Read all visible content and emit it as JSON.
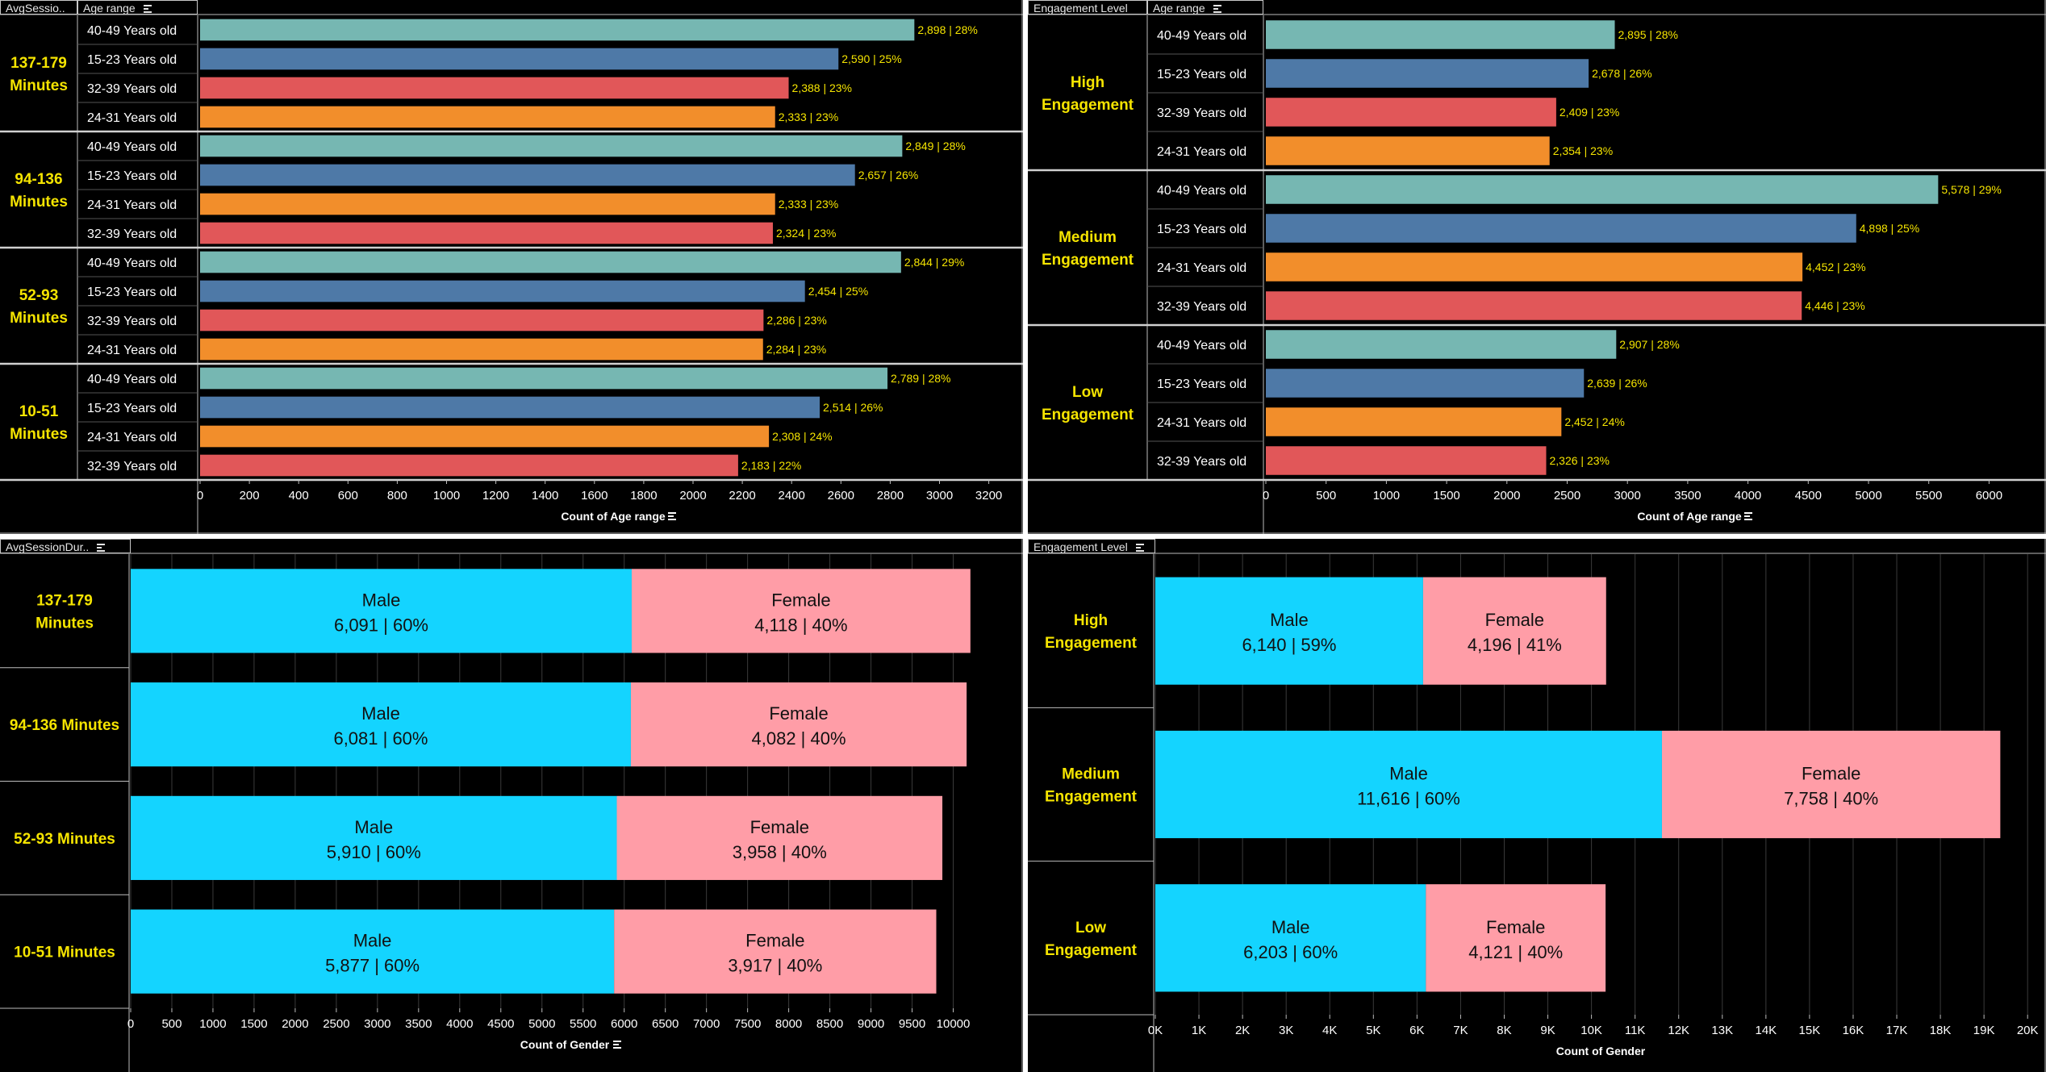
{
  "colors": {
    "age_40_49": "#76b7b2",
    "age_15_23": "#4e79a7",
    "age_32_39": "#e15759",
    "age_24_31": "#f28e2b",
    "male": "#14d4ff",
    "female": "#ff9da7",
    "group_label": "#f5e400",
    "value_label": "#f5e400"
  },
  "panels": {
    "top_left": {
      "headers": [
        "AvgSessio..",
        "Age range"
      ],
      "axis_title": "Count of Age range",
      "ticks": [
        "0",
        "200",
        "400",
        "600",
        "800",
        "1000",
        "1200",
        "1400",
        "1600",
        "1800",
        "2000",
        "2200",
        "2400",
        "2600",
        "2800",
        "3000",
        "3200"
      ],
      "groups": [
        {
          "label": [
            "137-179",
            "Minutes"
          ],
          "rows": [
            {
              "age": "40-49 Years old",
              "value": 2898,
              "label": "2,898 | 28%"
            },
            {
              "age": "15-23 Years old",
              "value": 2590,
              "label": "2,590 | 25%"
            },
            {
              "age": "32-39 Years old",
              "value": 2388,
              "label": "2,388 | 23%"
            },
            {
              "age": "24-31 Years old",
              "value": 2333,
              "label": "2,333 | 23%"
            }
          ]
        },
        {
          "label": [
            "94-136",
            "Minutes"
          ],
          "rows": [
            {
              "age": "40-49 Years old",
              "value": 2849,
              "label": "2,849 | 28%"
            },
            {
              "age": "15-23 Years old",
              "value": 2657,
              "label": "2,657 | 26%"
            },
            {
              "age": "24-31 Years old",
              "value": 2333,
              "label": "2,333 | 23%"
            },
            {
              "age": "32-39 Years old",
              "value": 2324,
              "label": "2,324 | 23%"
            }
          ]
        },
        {
          "label": [
            "52-93",
            "Minutes"
          ],
          "rows": [
            {
              "age": "40-49 Years old",
              "value": 2844,
              "label": "2,844 | 29%"
            },
            {
              "age": "15-23 Years old",
              "value": 2454,
              "label": "2,454 | 25%"
            },
            {
              "age": "32-39 Years old",
              "value": 2286,
              "label": "2,286 | 23%"
            },
            {
              "age": "24-31 Years old",
              "value": 2284,
              "label": "2,284 | 23%"
            }
          ]
        },
        {
          "label": [
            "10-51",
            "Minutes"
          ],
          "rows": [
            {
              "age": "40-49 Years old",
              "value": 2789,
              "label": "2,789 | 28%"
            },
            {
              "age": "15-23 Years old",
              "value": 2514,
              "label": "2,514 | 26%"
            },
            {
              "age": "24-31 Years old",
              "value": 2308,
              "label": "2,308 | 24%"
            },
            {
              "age": "32-39 Years old",
              "value": 2183,
              "label": "2,183 | 22%"
            }
          ]
        }
      ]
    },
    "top_right": {
      "headers": [
        "Engagement Level",
        "Age range"
      ],
      "axis_title": "Count of Age range",
      "ticks": [
        "0",
        "500",
        "1000",
        "1500",
        "2000",
        "2500",
        "3000",
        "3500",
        "4000",
        "4500",
        "5000",
        "5500",
        "6000"
      ],
      "groups": [
        {
          "label": [
            "High",
            "Engagement"
          ],
          "rows": [
            {
              "age": "40-49 Years old",
              "value": 2895,
              "label": "2,895 | 28%"
            },
            {
              "age": "15-23 Years old",
              "value": 2678,
              "label": "2,678 | 26%"
            },
            {
              "age": "32-39 Years old",
              "value": 2409,
              "label": "2,409 | 23%"
            },
            {
              "age": "24-31 Years old",
              "value": 2354,
              "label": "2,354 | 23%"
            }
          ]
        },
        {
          "label": [
            "Medium",
            "Engagement"
          ],
          "rows": [
            {
              "age": "40-49 Years old",
              "value": 5578,
              "label": "5,578 | 29%"
            },
            {
              "age": "15-23 Years old",
              "value": 4898,
              "label": "4,898 | 25%"
            },
            {
              "age": "24-31 Years old",
              "value": 4452,
              "label": "4,452 | 23%"
            },
            {
              "age": "32-39 Years old",
              "value": 4446,
              "label": "4,446 | 23%"
            }
          ]
        },
        {
          "label": [
            "Low",
            "Engagement"
          ],
          "rows": [
            {
              "age": "40-49 Years old",
              "value": 2907,
              "label": "2,907 | 28%"
            },
            {
              "age": "15-23 Years old",
              "value": 2639,
              "label": "2,639 | 26%"
            },
            {
              "age": "24-31 Years old",
              "value": 2452,
              "label": "2,452 | 24%"
            },
            {
              "age": "32-39 Years old",
              "value": 2326,
              "label": "2,326 | 23%"
            }
          ]
        }
      ]
    },
    "bottom_left": {
      "headers": [
        "AvgSessionDur.."
      ],
      "axis_title": "Count of Gender",
      "ticks": [
        "0",
        "500",
        "1000",
        "1500",
        "2000",
        "2500",
        "3000",
        "3500",
        "4000",
        "4500",
        "5000",
        "5500",
        "6000",
        "6500",
        "7000",
        "7500",
        "8000",
        "8500",
        "9000",
        "9500",
        "10000"
      ],
      "groups": [
        {
          "label": [
            "137-179",
            "Minutes"
          ],
          "male": {
            "name": "Male",
            "value": 6091,
            "label": "6,091 | 60%"
          },
          "female": {
            "name": "Female",
            "value": 4118,
            "label": "4,118 | 40%"
          }
        },
        {
          "label": [
            "94-136 Minutes"
          ],
          "male": {
            "name": "Male",
            "value": 6081,
            "label": "6,081 | 60%"
          },
          "female": {
            "name": "Female",
            "value": 4082,
            "label": "4,082 | 40%"
          }
        },
        {
          "label": [
            "52-93 Minutes"
          ],
          "male": {
            "name": "Male",
            "value": 5910,
            "label": "5,910 | 60%"
          },
          "female": {
            "name": "Female",
            "value": 3958,
            "label": "3,958 | 40%"
          }
        },
        {
          "label": [
            "10-51 Minutes"
          ],
          "male": {
            "name": "Male",
            "value": 5877,
            "label": "5,877 | 60%"
          },
          "female": {
            "name": "Female",
            "value": 3917,
            "label": "3,917 | 40%"
          }
        }
      ]
    },
    "bottom_right": {
      "headers": [
        "Engagement Level"
      ],
      "axis_title": "Count of Gender",
      "ticks": [
        "0K",
        "1K",
        "2K",
        "3K",
        "4K",
        "5K",
        "6K",
        "7K",
        "8K",
        "9K",
        "10K",
        "11K",
        "12K",
        "13K",
        "14K",
        "15K",
        "16K",
        "17K",
        "18K",
        "19K",
        "20K"
      ],
      "groups": [
        {
          "label": [
            "High",
            "Engagement"
          ],
          "male": {
            "name": "Male",
            "value": 6140,
            "label": "6,140 | 59%"
          },
          "female": {
            "name": "Female",
            "value": 4196,
            "label": "4,196 | 41%"
          }
        },
        {
          "label": [
            "Medium",
            "Engagement"
          ],
          "male": {
            "name": "Male",
            "value": 11616,
            "label": "11,616 | 60%"
          },
          "female": {
            "name": "Female",
            "value": 7758,
            "label": "7,758 | 40%"
          }
        },
        {
          "label": [
            "Low",
            "Engagement"
          ],
          "male": {
            "name": "Male",
            "value": 6203,
            "label": "6,203 | 60%"
          },
          "female": {
            "name": "Female",
            "value": 4121,
            "label": "4,121 | 40%"
          }
        }
      ]
    }
  },
  "chart_data": [
    {
      "type": "bar",
      "ylabel": "AvgSessionDuration group / Age range",
      "xlabel": "Count of Age range",
      "xlim": [
        0,
        3300
      ],
      "categories": [
        "137-179 Minutes",
        "94-136 Minutes",
        "52-93 Minutes",
        "10-51 Minutes"
      ],
      "series": [
        {
          "name": "40-49 Years old",
          "values": [
            2898,
            2849,
            2844,
            2789
          ]
        },
        {
          "name": "15-23 Years old",
          "values": [
            2590,
            2657,
            2454,
            2514
          ]
        },
        {
          "name": "32-39 Years old",
          "values": [
            2388,
            2324,
            2286,
            2183
          ]
        },
        {
          "name": "24-31 Years old",
          "values": [
            2333,
            2333,
            2284,
            2308
          ]
        }
      ],
      "grid": false
    },
    {
      "type": "bar",
      "ylabel": "Engagement Level / Age range",
      "xlabel": "Count of Age range",
      "xlim": [
        0,
        6400
      ],
      "categories": [
        "High Engagement",
        "Medium Engagement",
        "Low Engagement"
      ],
      "series": [
        {
          "name": "40-49 Years old",
          "values": [
            2895,
            5578,
            2907
          ]
        },
        {
          "name": "15-23 Years old",
          "values": [
            2678,
            4898,
            2639
          ]
        },
        {
          "name": "32-39 Years old",
          "values": [
            2409,
            4446,
            2326
          ]
        },
        {
          "name": "24-31 Years old",
          "values": [
            2354,
            4452,
            2452
          ]
        }
      ],
      "grid": false
    },
    {
      "type": "bar",
      "stacked": true,
      "ylabel": "AvgSessionDur..",
      "xlabel": "Count of Gender",
      "xlim": [
        0,
        10500
      ],
      "categories": [
        "137-179 Minutes",
        "94-136 Minutes",
        "52-93 Minutes",
        "10-51 Minutes"
      ],
      "series": [
        {
          "name": "Male",
          "values": [
            6091,
            6081,
            5910,
            5877
          ]
        },
        {
          "name": "Female",
          "values": [
            4118,
            4082,
            3958,
            3917
          ]
        }
      ],
      "grid": true
    },
    {
      "type": "bar",
      "stacked": true,
      "ylabel": "Engagement Level",
      "xlabel": "Count of Gender",
      "xlim": [
        0,
        20000
      ],
      "categories": [
        "High Engagement",
        "Medium Engagement",
        "Low Engagement"
      ],
      "series": [
        {
          "name": "Male",
          "values": [
            6140,
            11616,
            6203
          ]
        },
        {
          "name": "Female",
          "values": [
            4196,
            7758,
            4121
          ]
        }
      ],
      "grid": true
    }
  ]
}
